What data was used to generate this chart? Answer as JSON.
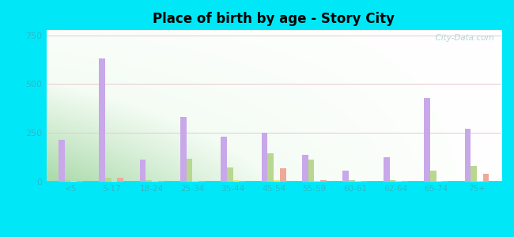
{
  "title": "Place of birth by age - Story City",
  "categories": [
    "<5",
    "5-17",
    "18-24",
    "25-34",
    "35-44",
    "45-54",
    "55-59",
    "60-61",
    "62-64",
    "65-74",
    "75+"
  ],
  "series": {
    "Born in state of residence": [
      215,
      630,
      110,
      330,
      230,
      250,
      135,
      55,
      125,
      430,
      270
    ],
    "Born in other state": [
      8,
      20,
      8,
      115,
      70,
      145,
      110,
      8,
      8,
      55,
      80
    ],
    "Native, outside of US": [
      3,
      3,
      3,
      3,
      8,
      8,
      3,
      3,
      3,
      3,
      3
    ],
    "Foreign-born": [
      3,
      18,
      3,
      3,
      3,
      68,
      8,
      3,
      3,
      3,
      38
    ]
  },
  "colors": {
    "Born in state of residence": "#c8a8e8",
    "Born in other state": "#b8d890",
    "Native, outside of US": "#f0e870",
    "Foreign-born": "#f0a898"
  },
  "ylim": [
    0,
    780
  ],
  "yticks": [
    0,
    250,
    500,
    750
  ],
  "bg_left": "#c0e8c0",
  "bg_right": "#f0f8f0",
  "outer_bg": "#00e8f8",
  "bar_width": 0.15,
  "watermark": "  City-Data.com"
}
